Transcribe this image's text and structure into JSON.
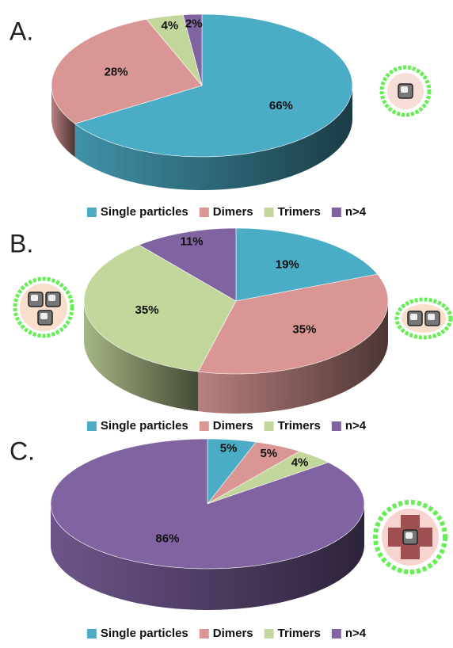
{
  "chart_data": [
    {
      "type": "pie",
      "title": "A.",
      "categories": [
        "Single particles",
        "Dimers",
        "Trimers",
        "n>4"
      ],
      "values": [
        66,
        28,
        4,
        2
      ],
      "value_labels": [
        "66%",
        "28%",
        "4%",
        "2%"
      ],
      "colors": [
        "#4bacc6",
        "#d99694",
        "#c3d69b",
        "#8064a2"
      ]
    },
    {
      "type": "pie",
      "title": "B.",
      "categories": [
        "Single particles",
        "Dimers",
        "Trimers",
        "n>4"
      ],
      "values": [
        19,
        35,
        35,
        11
      ],
      "value_labels": [
        "19%",
        "35%",
        "35%",
        "11%"
      ],
      "colors": [
        "#4bacc6",
        "#d99694",
        "#c3d69b",
        "#8064a2"
      ]
    },
    {
      "type": "pie",
      "title": "C.",
      "categories": [
        "Single particles",
        "Dimers",
        "Trimers",
        "n>4"
      ],
      "values": [
        5,
        5,
        4,
        86
      ],
      "value_labels": [
        "5%",
        "5%",
        "4%",
        "86%"
      ],
      "colors": [
        "#4bacc6",
        "#d99694",
        "#c3d69b",
        "#8064a2"
      ]
    }
  ]
}
